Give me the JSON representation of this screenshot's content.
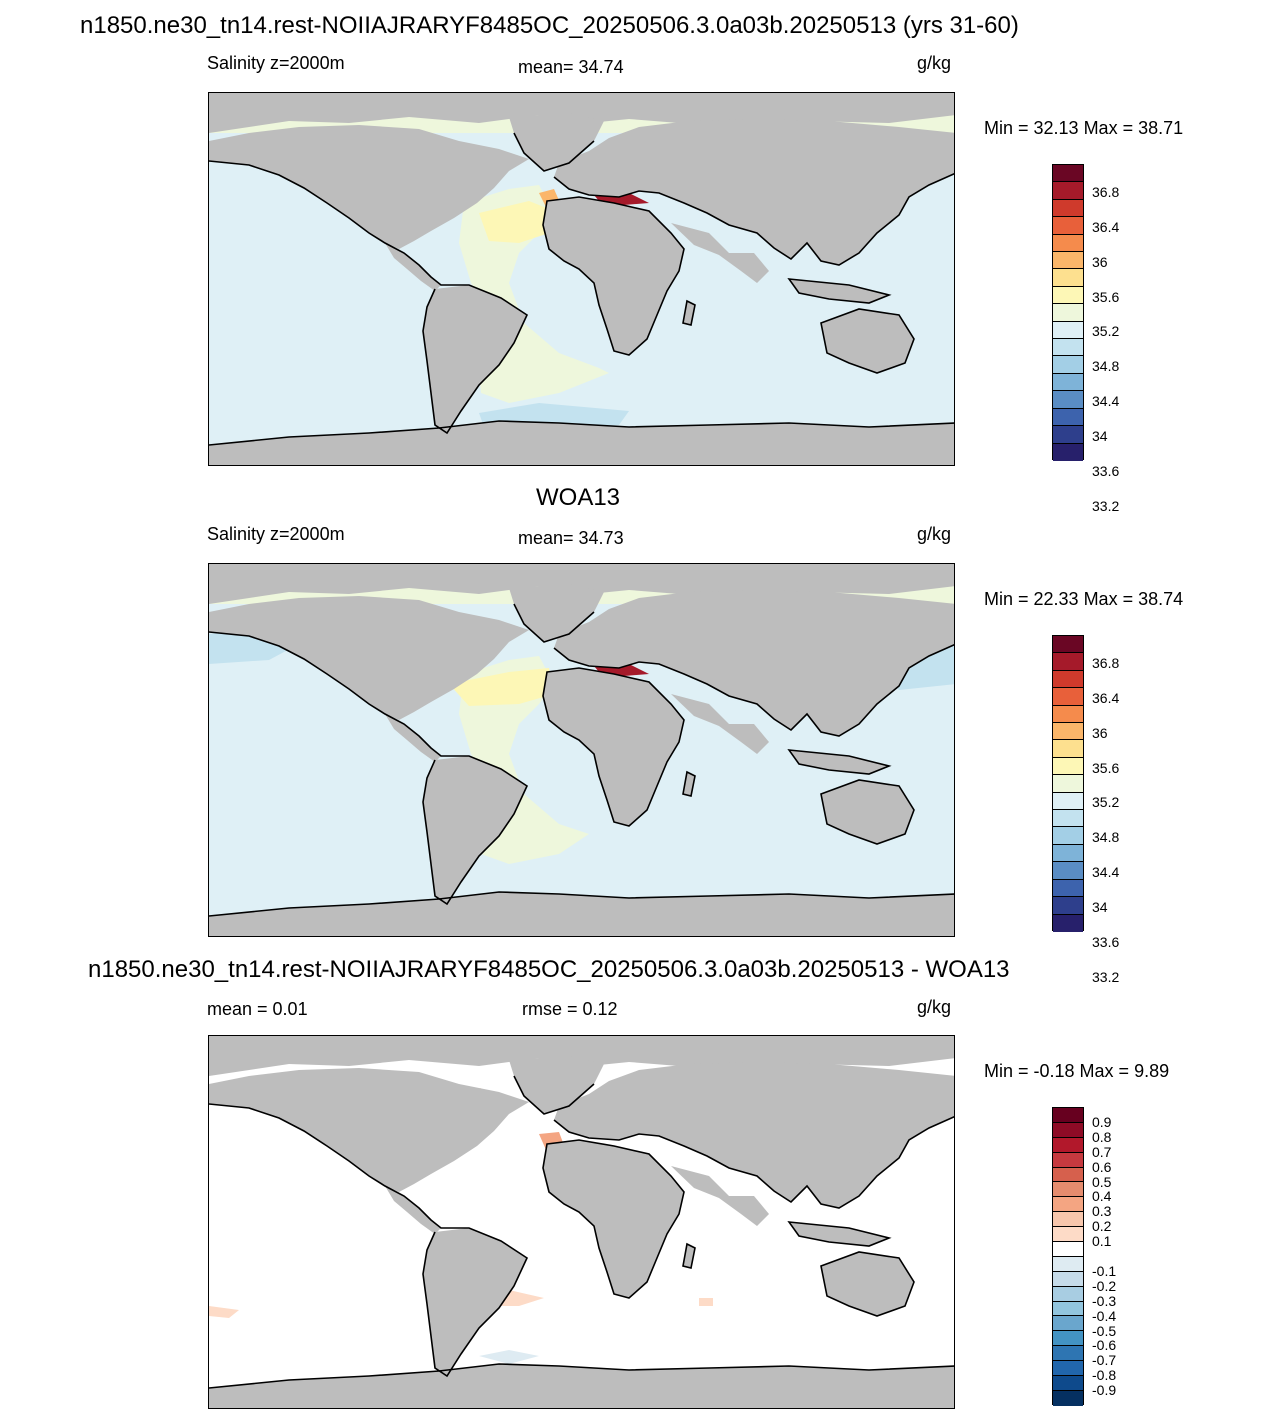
{
  "title_top": "n1850.ne30_tn14.rest-NOIIAJRARYF8485OC_20250506.3.0a03b.20250513 (yrs 31-60)",
  "title_mid": "WOA13",
  "title_bot": "n1850.ne30_tn14.rest-NOIIAJRARYF8485OC_20250506.3.0a03b.20250513 - WOA13",
  "panels": [
    {
      "left_label": "Salinity z=2000m",
      "center_label": "mean=  34.74",
      "units": "g/kg",
      "minmax": "Min =  32.13 Max =  38.71",
      "colorbar_labels": [
        "36.8",
        "36.4",
        "36",
        "35.6",
        "35.2",
        "34.8",
        "34.4",
        "34",
        "33.6",
        "33.2"
      ]
    },
    {
      "left_label": "Salinity z=2000m",
      "center_label": "mean=  34.73",
      "units": "g/kg",
      "minmax": "Min =  22.33 Max =  38.74",
      "colorbar_labels": [
        "36.8",
        "36.4",
        "36",
        "35.6",
        "35.2",
        "34.8",
        "34.4",
        "34",
        "33.6",
        "33.2"
      ]
    },
    {
      "left_label": "mean =   0.01",
      "center_label": "rmse =   0.12",
      "units": "g/kg",
      "minmax": "Min =  -0.18 Max =   9.89",
      "colorbar_labels": [
        "0.9",
        "0.8",
        "0.7",
        "0.6",
        "0.5",
        "0.4",
        "0.3",
        "0.2",
        "0.1",
        "-0.1",
        "-0.2",
        "-0.3",
        "-0.4",
        "-0.5",
        "-0.6",
        "-0.7",
        "-0.8",
        "-0.9"
      ]
    }
  ],
  "colors": {
    "land": "#bdbdbd",
    "sal_colorbar": [
      "#6a0624",
      "#a51a2a",
      "#cf3a2c",
      "#e8603a",
      "#f58b4c",
      "#fbb66a",
      "#fde08f",
      "#fdf7b6",
      "#eef7dc",
      "#dff0f6",
      "#c3e2ef",
      "#a3cfe6",
      "#7eb3d8",
      "#5a8dc4",
      "#3d63ad",
      "#2e3f8c",
      "#27206b"
    ],
    "diff_colorbar": [
      "#67001f",
      "#8e0b26",
      "#b2182b",
      "#c6393f",
      "#d6604d",
      "#e58c6e",
      "#f4a582",
      "#f7c6ac",
      "#fddbc7",
      "#ffffff",
      "#deebf2",
      "#c6dbe9",
      "#a8cde2",
      "#92c5de",
      "#6aa6cd",
      "#4393c3",
      "#2e75b2",
      "#2166ac",
      "#0e4a8c",
      "#053061"
    ]
  }
}
